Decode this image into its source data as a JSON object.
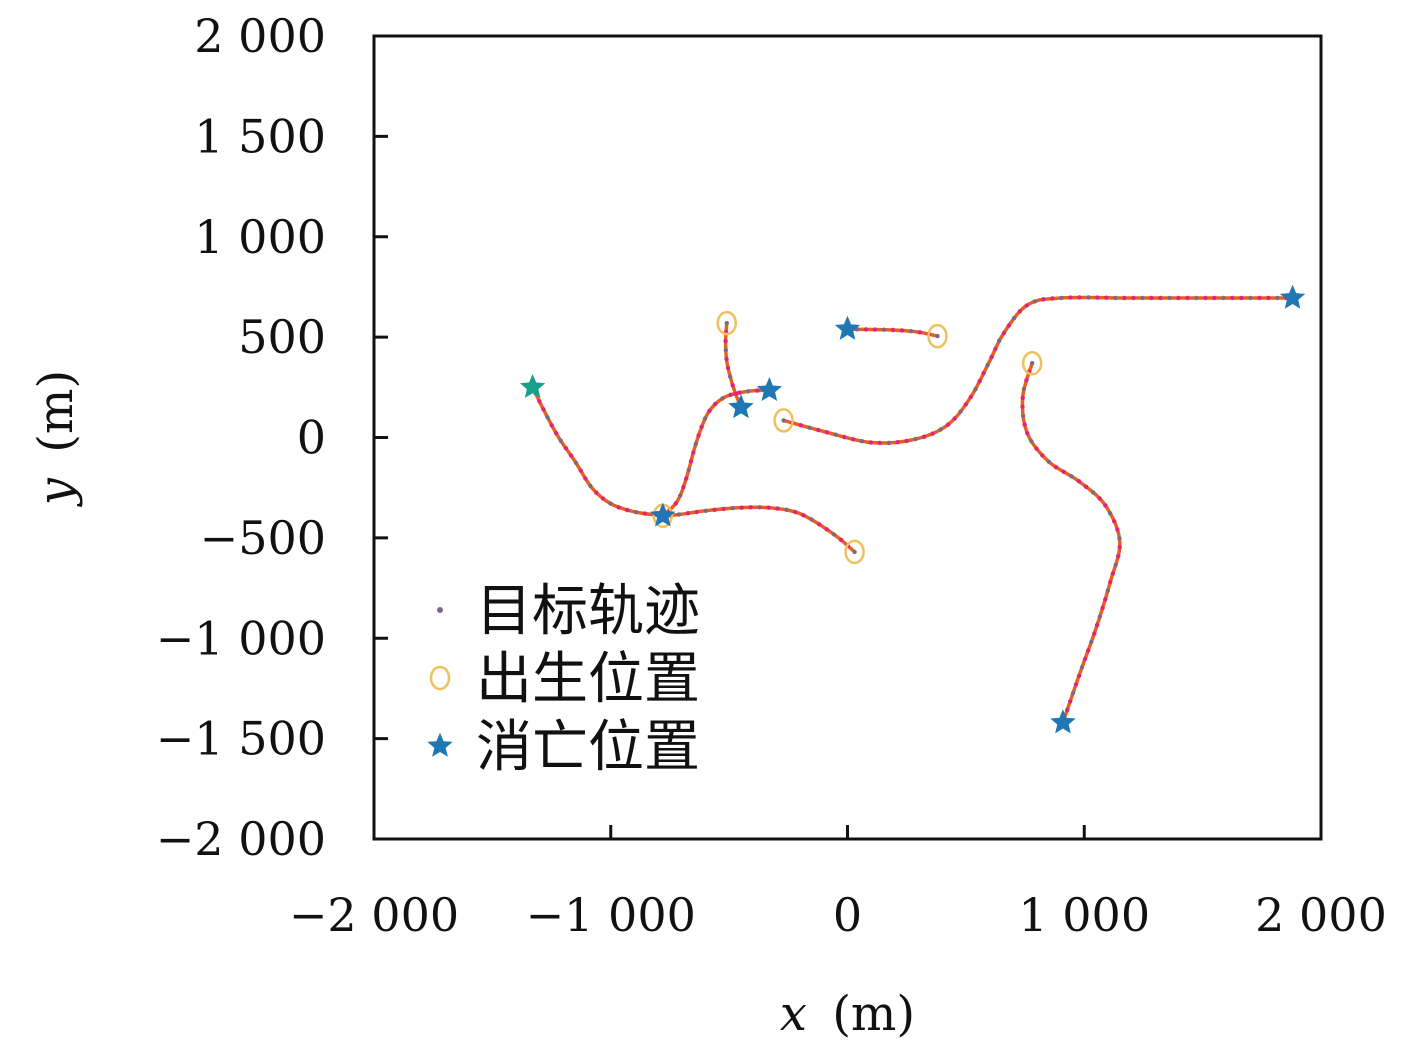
{
  "chart_data": {
    "type": "scatter",
    "title": "",
    "xlabel": {
      "var": "x",
      "unit": "(m)"
    },
    "ylabel": {
      "var": "y",
      "unit": "(m)"
    },
    "xlim": [
      -2000,
      2000
    ],
    "ylim": [
      -2000,
      2000
    ],
    "xticks": [
      {
        "value": -2000,
        "label": "−2 000"
      },
      {
        "value": -1000,
        "label": "−1 000"
      },
      {
        "value": 0,
        "label": "0"
      },
      {
        "value": 1000,
        "label": "1 000"
      },
      {
        "value": 2000,
        "label": "2 000"
      }
    ],
    "yticks": [
      {
        "value": 2000,
        "label": "2 000"
      },
      {
        "value": 1500,
        "label": "1 500"
      },
      {
        "value": 1000,
        "label": "1 000"
      },
      {
        "value": 500,
        "label": "500"
      },
      {
        "value": 0,
        "label": "0"
      },
      {
        "value": -500,
        "label": "−500"
      },
      {
        "value": -1000,
        "label": "−1 000"
      },
      {
        "value": -1500,
        "label": "−1 500"
      },
      {
        "value": -2000,
        "label": "−2 000"
      }
    ],
    "grid": false,
    "legend_position": "lower-left",
    "legend": [
      {
        "key": "track",
        "label": "目标轨迹"
      },
      {
        "key": "birth",
        "label": "出生位置"
      },
      {
        "key": "death",
        "label": "消亡位置"
      }
    ],
    "colors": {
      "track_line": "#e8611a",
      "track_dot_a": "#e0247e",
      "track_dot_b": "#7a6a88",
      "birth_marker": "#f0c060",
      "death_marker": "#1f77b4",
      "death_marker_alt": "#17a08c"
    },
    "tracks": [
      {
        "id": 1,
        "birth": [
          -780,
          -390
        ],
        "death": [
          -1330,
          250
        ],
        "points": [
          [
            -780,
            -390
          ],
          [
            -900,
            -370
          ],
          [
            -1000,
            -330
          ],
          [
            -1080,
            -250
          ],
          [
            -1150,
            -120
          ],
          [
            -1220,
            0
          ],
          [
            -1280,
            130
          ],
          [
            -1330,
            250
          ]
        ]
      },
      {
        "id": 2,
        "birth": [
          -780,
          -390
        ],
        "death": [
          -330,
          235
        ],
        "points": [
          [
            -780,
            -390
          ],
          [
            -720,
            -320
          ],
          [
            -680,
            -200
          ],
          [
            -640,
            -30
          ],
          [
            -590,
            120
          ],
          [
            -520,
            200
          ],
          [
            -420,
            230
          ],
          [
            -330,
            235
          ]
        ]
      },
      {
        "id": 3,
        "birth": [
          30,
          -570
        ],
        "death": [
          -780,
          -390
        ],
        "points": [
          [
            30,
            -570
          ],
          [
            -60,
            -480
          ],
          [
            -200,
            -380
          ],
          [
            -330,
            -350
          ],
          [
            -460,
            -350
          ],
          [
            -600,
            -365
          ],
          [
            -720,
            -385
          ],
          [
            -780,
            -390
          ]
        ]
      },
      {
        "id": 4,
        "birth": [
          -510,
          570
        ],
        "death": [
          -450,
          150
        ],
        "points": [
          [
            -510,
            570
          ],
          [
            -515,
            480
          ],
          [
            -510,
            380
          ],
          [
            -490,
            280
          ],
          [
            -470,
            210
          ],
          [
            -450,
            150
          ]
        ]
      },
      {
        "id": 5,
        "birth": [
          380,
          505
        ],
        "death": [
          0,
          540
        ],
        "points": [
          [
            380,
            505
          ],
          [
            300,
            525
          ],
          [
            200,
            535
          ],
          [
            100,
            538
          ],
          [
            0,
            540
          ]
        ]
      },
      {
        "id": 6,
        "birth": [
          -270,
          85
        ],
        "death": [
          1880,
          695
        ],
        "points": [
          [
            -270,
            85
          ],
          [
            -100,
            30
          ],
          [
            100,
            -25
          ],
          [
            280,
            -10
          ],
          [
            420,
            60
          ],
          [
            520,
            200
          ],
          [
            600,
            380
          ],
          [
            660,
            520
          ],
          [
            760,
            660
          ],
          [
            900,
            695
          ],
          [
            1200,
            695
          ],
          [
            1500,
            695
          ],
          [
            1880,
            695
          ]
        ]
      },
      {
        "id": 7,
        "birth": [
          780,
          370
        ],
        "death": [
          910,
          -1420
        ],
        "points": [
          [
            780,
            370
          ],
          [
            740,
            200
          ],
          [
            760,
            20
          ],
          [
            850,
            -120
          ],
          [
            980,
            -220
          ],
          [
            1090,
            -340
          ],
          [
            1150,
            -520
          ],
          [
            1110,
            -720
          ],
          [
            1050,
            -950
          ],
          [
            980,
            -1180
          ],
          [
            910,
            -1420
          ]
        ]
      }
    ]
  }
}
